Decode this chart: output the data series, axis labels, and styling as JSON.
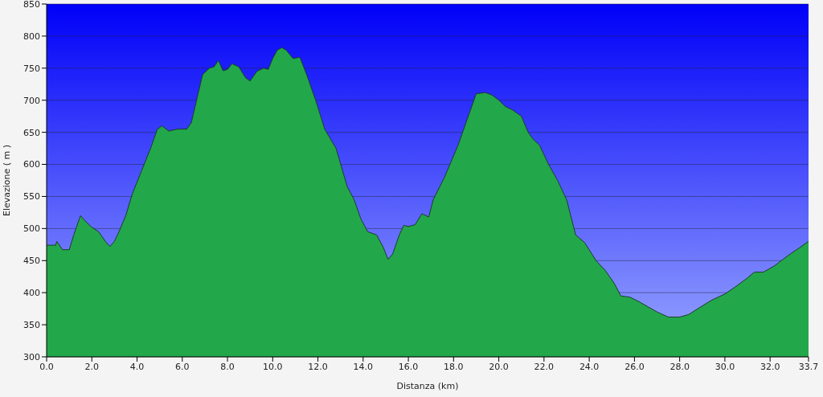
{
  "chart_data": {
    "type": "area",
    "xlabel": "Distanza  (km)",
    "ylabel": "Elevazione ( m )",
    "x": [
      0,
      0.4,
      0.45,
      0.7,
      1.0,
      1.2,
      1.5,
      1.7,
      2.0,
      2.3,
      2.6,
      2.8,
      3.0,
      3.2,
      3.5,
      3.8,
      4.2,
      4.6,
      4.9,
      5.1,
      5.4,
      5.8,
      6.2,
      6.4,
      6.6,
      6.9,
      7.2,
      7.4,
      7.6,
      7.8,
      8.0,
      8.2,
      8.5,
      8.8,
      9.0,
      9.3,
      9.6,
      9.8,
      10.0,
      10.2,
      10.4,
      10.6,
      10.9,
      11.2,
      11.5,
      11.9,
      12.3,
      12.8,
      13.3,
      13.6,
      13.9,
      14.2,
      14.6,
      14.9,
      15.1,
      15.3,
      15.6,
      15.8,
      16.0,
      16.3,
      16.6,
      16.9,
      17.1,
      17.6,
      18.2,
      18.7,
      19.0,
      19.4,
      19.7,
      20.0,
      20.3,
      20.6,
      21.0,
      21.3,
      21.5,
      21.8,
      22.2,
      22.6,
      23.0,
      23.4,
      23.8,
      24.3,
      24.7,
      25.1,
      25.4,
      25.8,
      26.2,
      26.6,
      27.0,
      27.5,
      28.0,
      28.4,
      28.8,
      29.4,
      30.0,
      30.5,
      31.0,
      31.3,
      31.7,
      32.2,
      32.8,
      33.3,
      33.7
    ],
    "series": [
      {
        "color": "#22a84a",
        "values": [
          474,
          474,
          480,
          467,
          467,
          490,
          520,
          512,
          502,
          495,
          480,
          472,
          480,
          495,
          520,
          555,
          590,
          625,
          655,
          660,
          652,
          655,
          655,
          665,
          695,
          740,
          750,
          752,
          762,
          746,
          748,
          757,
          752,
          735,
          730,
          745,
          750,
          748,
          765,
          778,
          782,
          778,
          765,
          767,
          740,
          700,
          655,
          625,
          565,
          545,
          515,
          495,
          490,
          470,
          452,
          460,
          490,
          505,
          503,
          506,
          523,
          518,
          545,
          580,
          630,
          680,
          710,
          712,
          708,
          700,
          690,
          685,
          675,
          650,
          640,
          630,
          600,
          575,
          545,
          490,
          478,
          450,
          435,
          415,
          395,
          393,
          386,
          378,
          370,
          362,
          362,
          366,
          375,
          388,
          398,
          410,
          423,
          432,
          432,
          442,
          458,
          470,
          480
        ]
      }
    ],
    "xlim": [
      0,
      33.7
    ],
    "ylim": [
      300,
      850
    ],
    "xticks": [
      {
        "value": 0,
        "label": "0.0"
      },
      {
        "value": 2,
        "label": "2.0"
      },
      {
        "value": 4,
        "label": "4.0"
      },
      {
        "value": 6,
        "label": "6.0"
      },
      {
        "value": 8,
        "label": "8.0"
      },
      {
        "value": 10,
        "label": "10.0"
      },
      {
        "value": 12,
        "label": "12.0"
      },
      {
        "value": 14,
        "label": "14.0"
      },
      {
        "value": 16,
        "label": "16.0"
      },
      {
        "value": 18,
        "label": "18.0"
      },
      {
        "value": 20,
        "label": "20.0"
      },
      {
        "value": 22,
        "label": "22.0"
      },
      {
        "value": 24,
        "label": "24.0"
      },
      {
        "value": 26,
        "label": "26.0"
      },
      {
        "value": 28,
        "label": "28.0"
      },
      {
        "value": 30,
        "label": "30.0"
      },
      {
        "value": 32,
        "label": "32.0"
      },
      {
        "value": 33.7,
        "label": "33.7"
      }
    ],
    "yticks": [
      300,
      350,
      400,
      450,
      500,
      550,
      600,
      650,
      700,
      750,
      800,
      850
    ],
    "grid": "y"
  }
}
